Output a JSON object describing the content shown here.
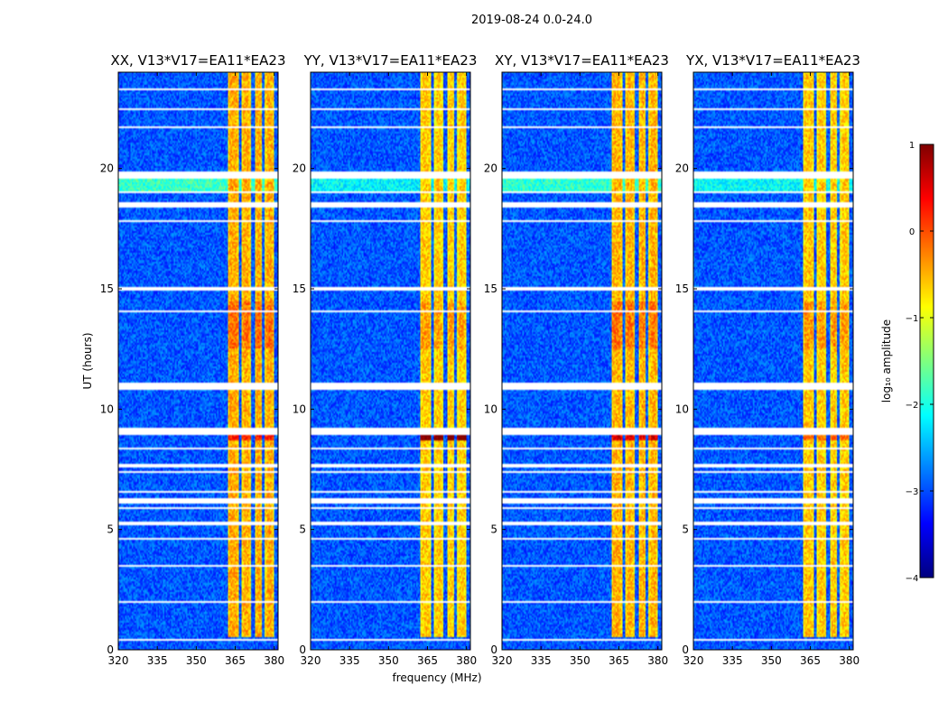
{
  "chart_data": {
    "type": "heatmap",
    "suptitle": "2019-08-24 0.0-24.0",
    "panels": [
      {
        "title": "XX, V13*V17=EA11*EA23",
        "weight": 1.0,
        "hotspot": 0.15
      },
      {
        "title": "YY, V13*V17=EA11*EA23",
        "weight": 0.72,
        "hotspot": 0.35
      },
      {
        "title": "XY, V13*V17=EA11*EA23",
        "weight": 0.95,
        "hotspot": 0.2
      },
      {
        "title": "YX, V13*V17=EA11*EA23",
        "weight": 0.75,
        "hotspot": 0.1
      }
    ],
    "xlabel": "frequency (MHz)",
    "ylabel": "UT (hours)",
    "xlim": [
      320,
      381.5
    ],
    "ylim": [
      0,
      24
    ],
    "xticks": [
      320,
      335,
      350,
      365,
      380
    ],
    "xtick_labels": [
      "320",
      "335",
      "350",
      "365",
      "380"
    ],
    "yticks": [
      0,
      5,
      10,
      15,
      20
    ],
    "ytick_labels": [
      "0",
      "5",
      "10",
      "15",
      "20"
    ],
    "colorbar": {
      "label": "log₁₀ amplitude",
      "range": [
        -4,
        1
      ],
      "ticks": [
        1,
        0,
        -1,
        -2,
        -3,
        -4
      ],
      "tick_labels": [
        "1",
        "0",
        "−1",
        "−2",
        "−3",
        "−4"
      ],
      "colors": [
        "#00007f",
        "#0000ff",
        "#007fff",
        "#00ffff",
        "#7fff7f",
        "#ffff00",
        "#ff7f00",
        "#ff0000",
        "#7f0000"
      ]
    },
    "signal_bands_mhz": [
      [
        362,
        366.5
      ],
      [
        367.5,
        371
      ],
      [
        372.5,
        375.5
      ],
      [
        376.5,
        380
      ]
    ],
    "signal_start_hours": 0.5,
    "flagged_hours": [
      [
        0.35,
        0.45
      ],
      [
        1.95,
        2.05
      ],
      [
        3.45,
        3.55
      ],
      [
        4.55,
        4.65
      ],
      [
        5.2,
        5.3
      ],
      [
        5.85,
        5.95
      ],
      [
        6.05,
        6.3
      ],
      [
        6.55,
        6.6
      ],
      [
        7.35,
        7.4
      ],
      [
        7.6,
        7.75
      ],
      [
        8.3,
        8.4
      ],
      [
        8.95,
        9.2
      ],
      [
        10.55,
        10.6
      ],
      [
        10.8,
        11.1
      ],
      [
        11.9,
        11.95
      ],
      [
        12.95,
        13.0
      ],
      [
        14.05,
        14.1
      ],
      [
        14.9,
        15.05
      ],
      [
        15.5,
        15.55
      ],
      [
        16.4,
        16.45
      ],
      [
        17.3,
        17.35
      ],
      [
        17.75,
        17.85
      ],
      [
        18.4,
        18.6
      ],
      [
        18.95,
        19.05
      ],
      [
        19.6,
        19.85
      ],
      [
        20.75,
        20.8
      ],
      [
        21.65,
        21.75
      ],
      [
        22.45,
        22.5
      ],
      [
        23.25,
        23.3
      ]
    ]
  }
}
